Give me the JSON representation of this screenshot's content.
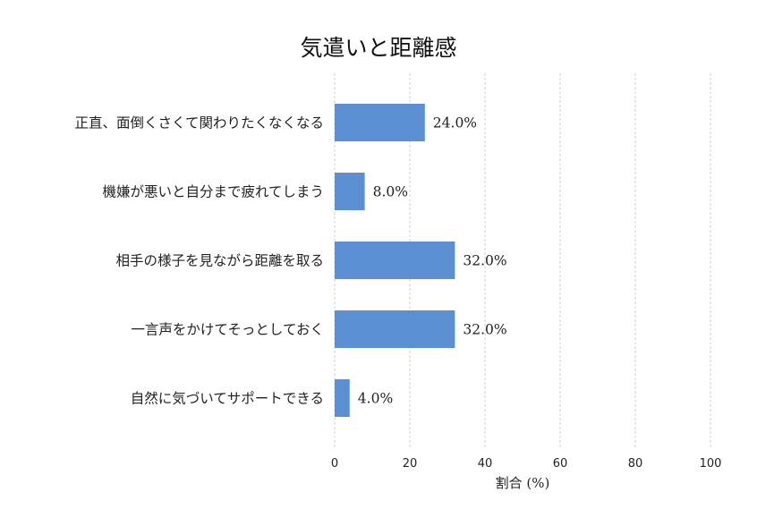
{
  "chart_data": {
    "type": "bar",
    "orientation": "horizontal",
    "title": "気遣いと距離感",
    "xlabel": "割合 (%)",
    "ylabel": "",
    "xlim": [
      0,
      100
    ],
    "xticks": [
      0,
      20,
      40,
      60,
      80,
      100
    ],
    "grid": true,
    "bar_color": "#5b8fd1",
    "categories": [
      "正直、面倒くさくて関わりたくなくなる",
      "機嫌が悪いと自分まで疲れてしまう",
      "相手の様子を見ながら距離を取る",
      "一言声をかけてそっとしておく",
      "自然に気づいてサポートできる"
    ],
    "values": [
      24.0,
      8.0,
      32.0,
      32.0,
      4.0
    ],
    "value_labels": [
      "24.0%",
      "8.0%",
      "32.0%",
      "32.0%",
      "4.0%"
    ]
  }
}
